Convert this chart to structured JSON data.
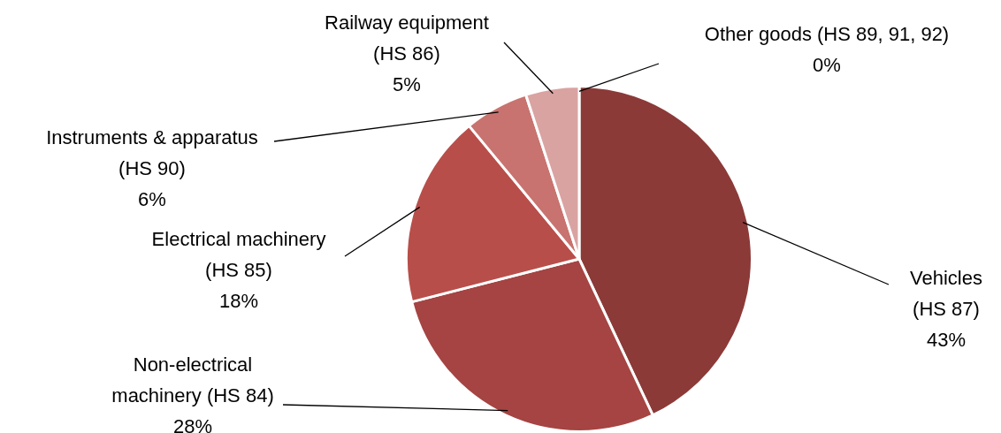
{
  "chart_data": {
    "type": "pie",
    "categories": [
      "Vehicles (HS 87)",
      "Non-electrical machinery (HS 84)",
      "Electrical machinery (HS 85)",
      "Instruments & apparatus (HS 90)",
      "Railway equipment (HS 86)",
      "Other goods (HS 89, 91, 92)"
    ],
    "values": [
      43,
      28,
      18,
      6,
      5,
      0
    ],
    "value_labels": [
      "43%",
      "28%",
      "18%",
      "6%",
      "5%",
      "0%"
    ],
    "colors": [
      "#8b3a38",
      "#a54442",
      "#b84e4a",
      "#c8736f",
      "#d9a3a2",
      "#ecd2d2"
    ],
    "legend": false
  }
}
